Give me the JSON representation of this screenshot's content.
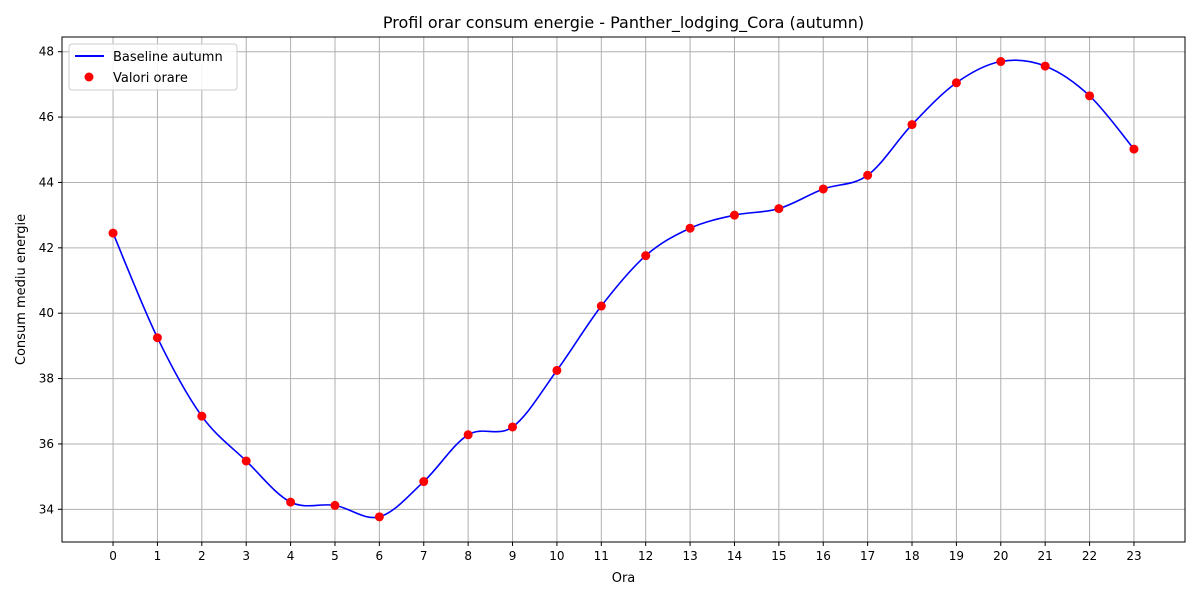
{
  "chart_data": {
    "type": "line",
    "title": "Profil orar consum energie - Panther_lodging_Cora (autumn)",
    "xlabel": "Ora",
    "ylabel": "Consum mediu energie",
    "x": [
      0,
      1,
      2,
      3,
      4,
      5,
      6,
      7,
      8,
      9,
      10,
      11,
      12,
      13,
      14,
      15,
      16,
      17,
      18,
      19,
      20,
      21,
      22,
      23
    ],
    "x_ticks": [
      "0",
      "1",
      "2",
      "3",
      "4",
      "5",
      "6",
      "7",
      "8",
      "9",
      "10",
      "11",
      "12",
      "13",
      "14",
      "15",
      "16",
      "17",
      "18",
      "19",
      "20",
      "21",
      "22",
      "23"
    ],
    "y_ticks": [
      "34",
      "36",
      "38",
      "40",
      "42",
      "44",
      "46",
      "48"
    ],
    "y_tick_values": [
      34,
      36,
      38,
      40,
      42,
      44,
      46,
      48
    ],
    "xlim": [
      -1.15,
      24.15
    ],
    "ylim": [
      33.0,
      48.45
    ],
    "grid": true,
    "legend_position": "top-left",
    "series": [
      {
        "name": "Baseline autumn",
        "kind": "line",
        "color": "#0000ff",
        "values": [
          42.45,
          39.25,
          36.85,
          35.48,
          34.22,
          34.12,
          33.77,
          34.85,
          36.28,
          36.52,
          38.25,
          40.22,
          41.76,
          42.6,
          43.0,
          43.2,
          43.8,
          44.22,
          45.77,
          47.05,
          47.7,
          47.56,
          46.65,
          45.02
        ]
      },
      {
        "name": "Valori orare",
        "kind": "scatter",
        "color": "#ff0000",
        "values": [
          42.45,
          39.25,
          36.85,
          35.48,
          34.22,
          34.12,
          33.77,
          34.85,
          36.28,
          36.52,
          38.25,
          40.22,
          41.76,
          42.6,
          43.0,
          43.2,
          43.8,
          44.22,
          45.77,
          47.05,
          47.7,
          47.56,
          46.65,
          45.02
        ]
      }
    ]
  }
}
